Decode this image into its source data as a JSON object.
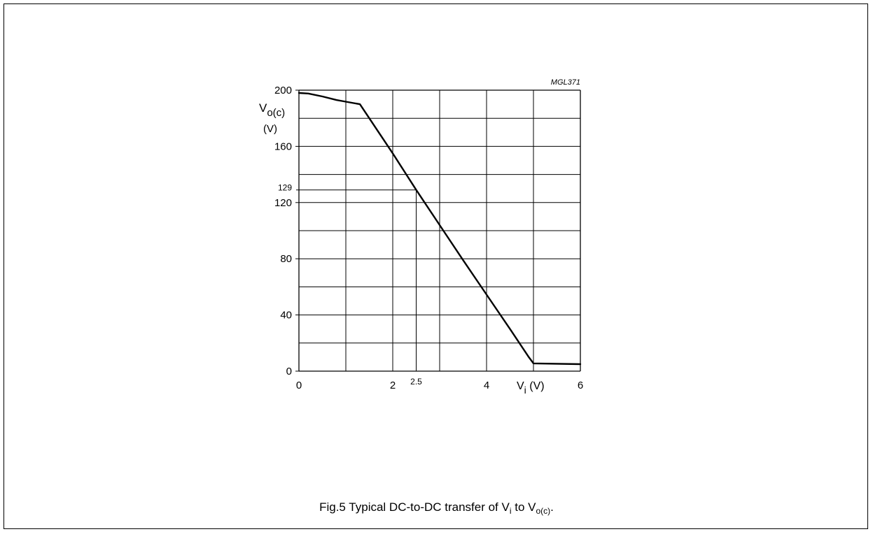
{
  "figure_code": "MGL371",
  "caption": {
    "prefix": "Fig.5  Typical DC-to-DC transfer of V",
    "sub1": "i",
    "mid": " to V",
    "sub2": "o(c)",
    "suffix": "."
  },
  "chart_data": {
    "type": "line",
    "xlabel": {
      "base": "V",
      "sub": "i",
      "unit": " (V)"
    },
    "ylabel": {
      "base": "V",
      "sub": "o(c)",
      "unit": "(V)"
    },
    "xlim": [
      0,
      6
    ],
    "ylim": [
      0,
      200
    ],
    "x_ticks": [
      0,
      2,
      4,
      6
    ],
    "x_marker": {
      "value": 2.5,
      "label": "2.5"
    },
    "y_ticks": [
      0,
      40,
      80,
      120,
      160,
      200
    ],
    "y_marker": {
      "value": 129,
      "label": "129"
    },
    "grid": {
      "x_step": 1,
      "y_step": 20,
      "show": true
    },
    "series": [
      {
        "points": [
          [
            0,
            198
          ],
          [
            0.2,
            197.6
          ],
          [
            0.5,
            195.5
          ],
          [
            0.8,
            193
          ],
          [
            1.0,
            191.8
          ],
          [
            1.3,
            190
          ],
          [
            2.0,
            155
          ],
          [
            2.5,
            129
          ],
          [
            3.0,
            104
          ],
          [
            3.5,
            79
          ],
          [
            4.0,
            54.5
          ],
          [
            4.5,
            30
          ],
          [
            4.9,
            10
          ],
          [
            5.0,
            5.5
          ],
          [
            6.0,
            5
          ]
        ]
      }
    ]
  }
}
